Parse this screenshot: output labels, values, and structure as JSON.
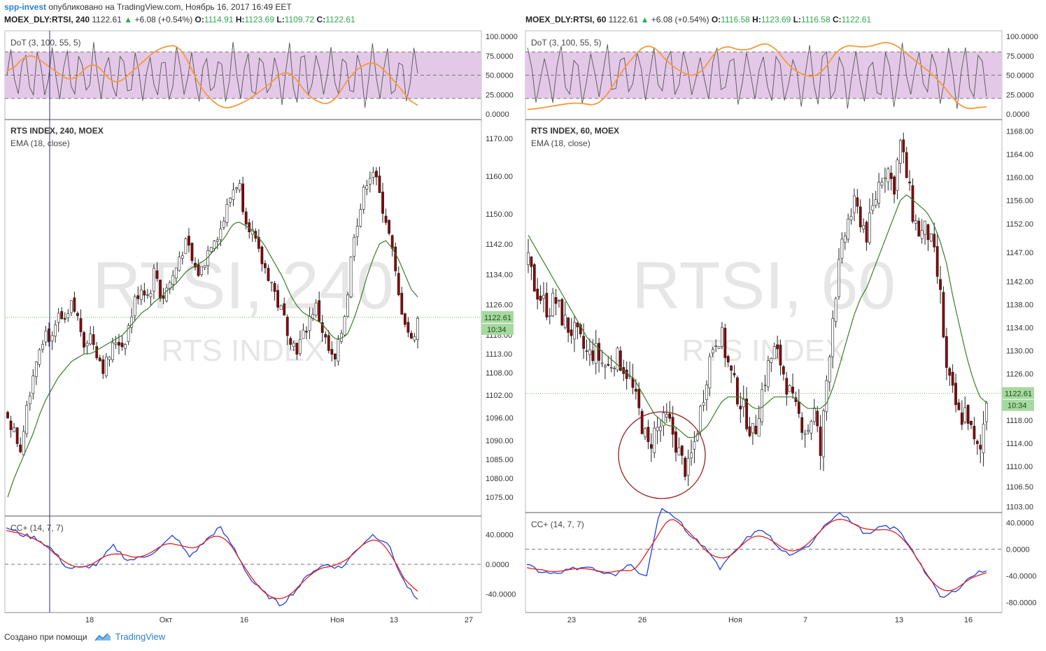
{
  "header": {
    "author": "spp-invest",
    "published_text": "опубликовано на TradingView.com, Ноябрь 16, 2017 16:49 EET"
  },
  "footer": {
    "created_with": "Создано при помощи",
    "brand": "TradingView"
  },
  "colors": {
    "up_text": "#2fa84f",
    "candle_up": "#ffffff",
    "candle_down": "#8b0000",
    "ema": "#3a7d2a",
    "dot_band": "#e4c8e8",
    "dot_fast": "#555555",
    "dot_slow": "#f59a3a",
    "cc_fast": "#1f3fe0",
    "cc_slow": "#e01f1f",
    "price_tag": "#a6d9a0",
    "circle": "#9b1c1c"
  },
  "panels": [
    {
      "symbol": "MOEX_DLY:RTSI, 240",
      "last": "1122.61",
      "change": "+6.08 (+0.54%)",
      "o_label": "O:",
      "o": "1114.91",
      "h_label": "H:",
      "h": "1123.69",
      "l_label": "L:",
      "l": "1109.72",
      "c_label": "C:",
      "c": "1122.61",
      "dot_label": "DoT (3, 100, 55, 5)",
      "dot_ticks": [
        "100.0000",
        "75.0000",
        "50.0000",
        "25.0000",
        "0.0000"
      ],
      "main_title": "RTS INDEX, 240, MOEX",
      "ema_label": "EMA (18, close)",
      "watermark1": "RTSI, 240",
      "watermark2": "RTS INDEX",
      "price_ticks": [
        "1170.00",
        "1160.00",
        "1150.00",
        "1142.00",
        "1134.00",
        "1126.00",
        "1118.00",
        "1113.00",
        "1108.00",
        "1102.00",
        "1096.00",
        "1090.00",
        "1085.00",
        "1080.00",
        "1075.00"
      ],
      "price_tag": "1122.61",
      "time_tag": "10:34",
      "cc_label": "CC+ (14, 7, 7)",
      "cc_ticks": [
        "40.0000",
        "0.0000",
        "-40.0000"
      ],
      "x_labels": [
        "18",
        "Окт",
        "16",
        "Ноя",
        "13",
        "27"
      ]
    },
    {
      "symbol": "MOEX_DLY:RTSI, 60",
      "last": "1122.61",
      "change": "+6.08 (+0.54%)",
      "o_label": "O:",
      "o": "1116.58",
      "h_label": "H:",
      "h": "1123.69",
      "l_label": "L:",
      "l": "1116.58",
      "c_label": "C:",
      "c": "1122.61",
      "dot_label": "DoT (3, 100, 55, 5)",
      "dot_ticks": [
        "100.0000",
        "75.0000",
        "50.0000",
        "25.0000",
        "0.0000"
      ],
      "main_title": "RTS INDEX, 60, MOEX",
      "ema_label": "EMA (18, close)",
      "watermark1": "RTSI, 60",
      "watermark2": "RTS INDEX",
      "price_ticks": [
        "1168.00",
        "1164.00",
        "1160.00",
        "1156.00",
        "1152.00",
        "1147.00",
        "1142.00",
        "1138.00",
        "1134.00",
        "1130.00",
        "1126.00",
        "1118.00",
        "1114.00",
        "1110.00",
        "1106.50",
        "1103.00"
      ],
      "price_tag": "1122.61",
      "time_tag": "10:34",
      "cc_label": "CC+ (14, 7, 7)",
      "cc_ticks": [
        "40.0000",
        "0.0000",
        "-40.0000",
        "-80.0000"
      ],
      "x_labels": [
        "23",
        "26",
        "Ноя",
        "7",
        "13",
        "16"
      ]
    }
  ],
  "chart_data": [
    {
      "type": "candlestick",
      "title": "RTS INDEX, 240, MOEX",
      "ylim": [
        1070,
        1175
      ],
      "overlay": "EMA (18, close)",
      "close_path": [
        1097,
        1092,
        1088,
        1100,
        1108,
        1116,
        1119,
        1116,
        1123,
        1120,
        1126,
        1122,
        1116,
        1118,
        1113,
        1109,
        1113,
        1117,
        1115,
        1121,
        1128,
        1131,
        1128,
        1136,
        1127,
        1131,
        1134,
        1140,
        1142,
        1136,
        1134,
        1139,
        1144,
        1145,
        1150,
        1156,
        1159,
        1150,
        1146,
        1140,
        1136,
        1133,
        1127,
        1123,
        1118,
        1114,
        1117,
        1122,
        1126,
        1120,
        1114,
        1110,
        1118,
        1128,
        1145,
        1151,
        1159,
        1162,
        1155,
        1149,
        1140,
        1128,
        1122,
        1116,
        1122
      ],
      "ema_path": [
        1075,
        1080,
        1084,
        1088,
        1092,
        1097,
        1101,
        1104,
        1107,
        1109,
        1111,
        1112,
        1113,
        1113,
        1114,
        1115,
        1116,
        1117,
        1118,
        1120,
        1122,
        1124,
        1125,
        1127,
        1128,
        1130,
        1131,
        1133,
        1135,
        1136,
        1137,
        1138,
        1140,
        1142,
        1144,
        1147,
        1148,
        1147,
        1146,
        1144,
        1142,
        1139,
        1136,
        1133,
        1129,
        1126,
        1124,
        1123,
        1122,
        1121,
        1119,
        1117,
        1117,
        1118,
        1122,
        1127,
        1133,
        1138,
        1142,
        1143,
        1141,
        1138,
        1134,
        1130,
        1128
      ]
    },
    {
      "type": "candlestick",
      "title": "RTS INDEX, 60, MOEX",
      "ylim": [
        1102,
        1170
      ],
      "overlay": "EMA (18, close)",
      "close_path": [
        1145,
        1141,
        1139,
        1137,
        1139,
        1136,
        1134,
        1133,
        1131,
        1129,
        1130,
        1128,
        1127,
        1129,
        1128,
        1126,
        1122,
        1118,
        1113,
        1116,
        1117,
        1118,
        1115,
        1111,
        1109,
        1114,
        1120,
        1127,
        1132,
        1133,
        1128,
        1124,
        1121,
        1118,
        1115,
        1122,
        1127,
        1130,
        1128,
        1124,
        1120,
        1118,
        1116,
        1120,
        1112,
        1126,
        1138,
        1146,
        1152,
        1155,
        1153,
        1150,
        1155,
        1160,
        1162,
        1158,
        1166,
        1160,
        1153,
        1150,
        1151,
        1147,
        1140,
        1126,
        1122,
        1118,
        1120,
        1114,
        1112,
        1122
      ],
      "ema_path": [
        1150,
        1148,
        1146,
        1144,
        1142,
        1140,
        1138,
        1136,
        1134,
        1132,
        1131,
        1130,
        1129,
        1128,
        1127,
        1126,
        1125,
        1123,
        1121,
        1119,
        1118,
        1117,
        1117,
        1116,
        1115,
        1115,
        1116,
        1117,
        1119,
        1121,
        1122,
        1122,
        1122,
        1121,
        1120,
        1120,
        1121,
        1122,
        1122,
        1122,
        1122,
        1121,
        1120,
        1120,
        1120,
        1121,
        1124,
        1128,
        1132,
        1136,
        1139,
        1141,
        1144,
        1147,
        1150,
        1153,
        1156,
        1157,
        1156,
        1155,
        1154,
        1152,
        1149,
        1145,
        1139,
        1134,
        1129,
        1125,
        1122,
        1121
      ]
    }
  ]
}
